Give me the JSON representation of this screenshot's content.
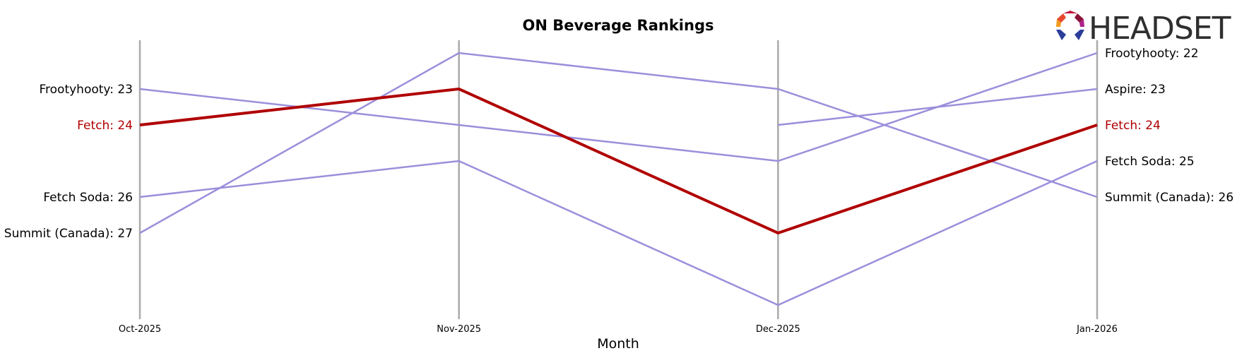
{
  "chart_data": {
    "type": "line",
    "title": "ON Beverage Rankings",
    "xlabel": "Month",
    "ylabel": "",
    "x": [
      "Oct-2025",
      "Nov-2025",
      "Dec-2025",
      "Jan-2026"
    ],
    "y_inverted": true,
    "ylim": [
      29.2,
      20.8
    ],
    "grid": "vertical lines at each month",
    "highlight_series": "Fetch",
    "colors": {
      "highlight": "#b00000",
      "other": "#9b8fdb",
      "axis": "#aaaaaa",
      "label": "#000000"
    },
    "series": [
      {
        "name": "Frootyhooty",
        "values": [
          23,
          24,
          25,
          22
        ],
        "highlight": false
      },
      {
        "name": "Fetch",
        "values": [
          24,
          23,
          27,
          24
        ],
        "highlight": true
      },
      {
        "name": "Fetch Soda",
        "values": [
          26,
          25,
          29,
          25
        ],
        "highlight": false
      },
      {
        "name": "Summit (Canada)",
        "values": [
          27,
          22,
          23,
          26
        ],
        "highlight": false
      },
      {
        "name": "Aspire",
        "values": [
          null,
          null,
          24,
          23
        ],
        "highlight": false
      }
    ],
    "left_labels": [
      {
        "text": "Frootyhooty: 23",
        "rank": 23,
        "highlight": false
      },
      {
        "text": "Fetch: 24",
        "rank": 24,
        "highlight": true
      },
      {
        "text": "Fetch Soda: 26",
        "rank": 26,
        "highlight": false
      },
      {
        "text": "Summit (Canada): 27",
        "rank": 27,
        "highlight": false
      }
    ],
    "right_labels": [
      {
        "text": "Frootyhooty: 22",
        "rank": 22,
        "highlight": false
      },
      {
        "text": "Aspire: 23",
        "rank": 23,
        "highlight": false
      },
      {
        "text": "Fetch: 24",
        "rank": 24,
        "highlight": true
      },
      {
        "text": "Fetch Soda: 25",
        "rank": 25,
        "highlight": false
      },
      {
        "text": "Summit (Canada): 26",
        "rank": 26,
        "highlight": false
      }
    ]
  },
  "logo": {
    "text": "HEADSET",
    "icon": "headset-logo-icon"
  }
}
